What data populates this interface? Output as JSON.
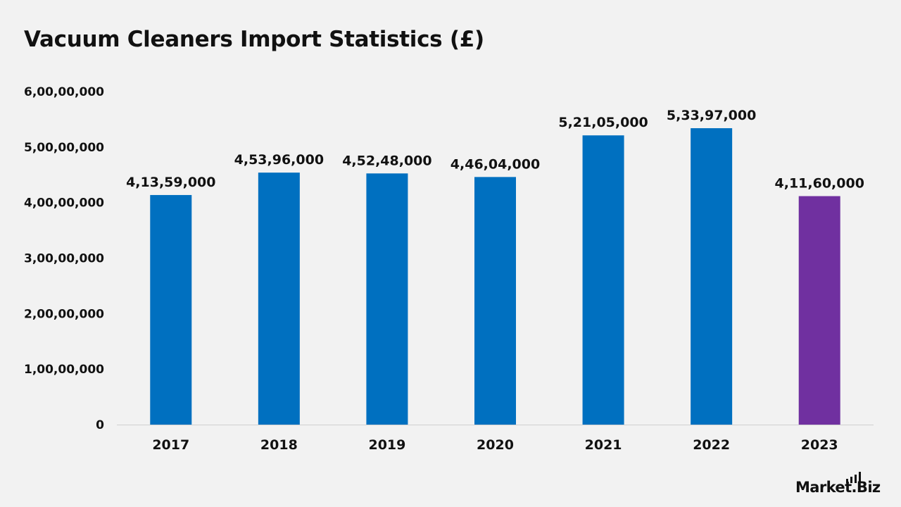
{
  "chart_data": {
    "type": "bar",
    "title": "Vacuum Cleaners Import Statistics (£)",
    "xlabel": "",
    "ylabel": "",
    "categories": [
      "2017",
      "2018",
      "2019",
      "2020",
      "2021",
      "2022",
      "2023"
    ],
    "values": [
      41359000,
      45396000,
      45248000,
      44604000,
      52105000,
      53397000,
      41160000
    ],
    "value_labels": [
      "4,13,59,000",
      "4,53,96,000",
      "4,52,48,000",
      "4,46,04,000",
      "5,21,05,000",
      "5,33,97,000",
      "4,11,60,000"
    ],
    "bar_colors": [
      "#0070c0",
      "#0070c0",
      "#0070c0",
      "#0070c0",
      "#0070c0",
      "#0070c0",
      "#7030a0"
    ],
    "ylim": [
      0,
      60000000
    ],
    "yticks": [
      0,
      10000000,
      20000000,
      30000000,
      40000000,
      50000000,
      60000000
    ],
    "ytick_labels": [
      "0",
      "1,00,00,000",
      "2,00,00,000",
      "3,00,00,000",
      "4,00,00,000",
      "5,00,00,000",
      "6,00,00,000"
    ],
    "grid": false,
    "legend": "none"
  },
  "brand": {
    "name": "Market",
    "suffix": "Biz"
  }
}
